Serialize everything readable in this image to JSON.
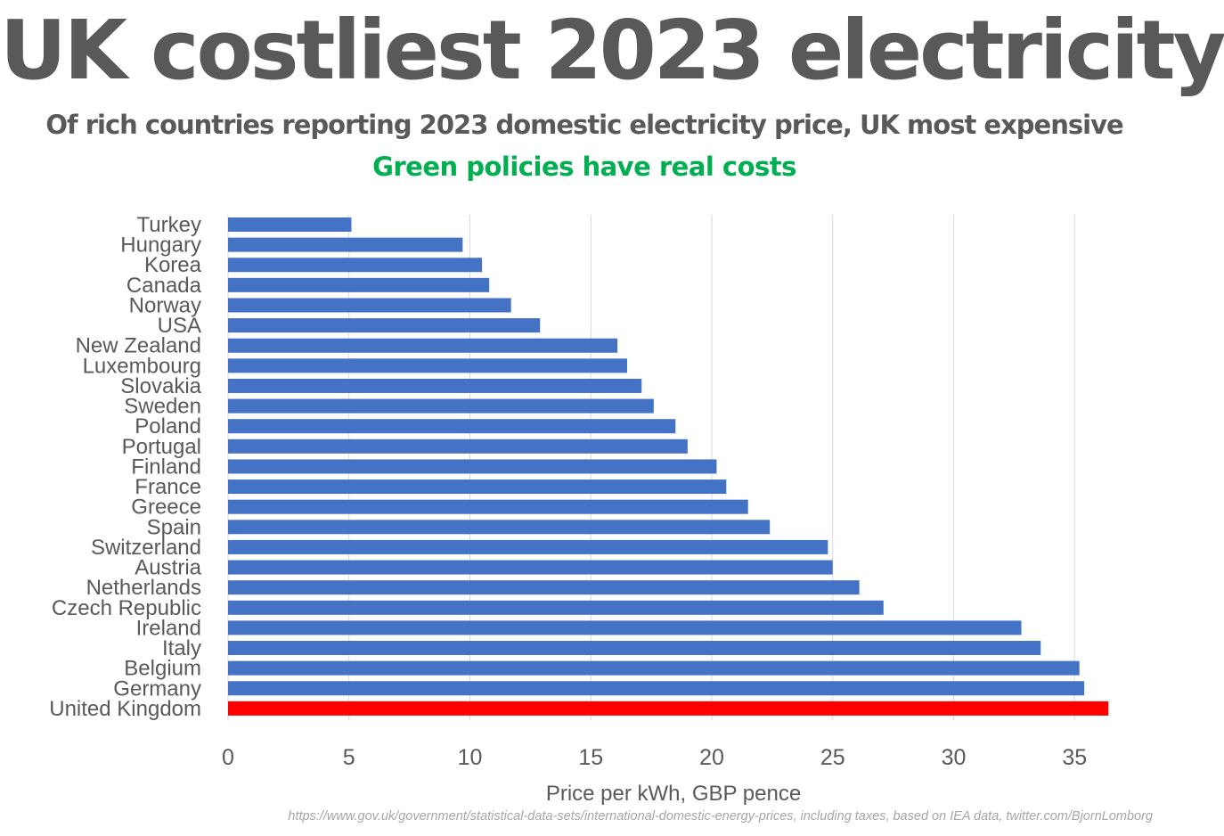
{
  "title": "UK costliest 2023 electricity",
  "subtitle": "Of rich countries reporting 2023 domestic electricity price, UK most expensive",
  "subtitle2": "Green policies have real costs",
  "source": "https://www.gov.uk/government/statistical-data-sets/international-domestic-energy-prices, including taxes, based on IEA data, twitter.com/BjornLomborg",
  "colors": {
    "title": "#595959",
    "subtitle2": "#00b050",
    "bar": "#4472c4",
    "highlight_bar": "#ff0000",
    "gridline": "#d9d9d9",
    "axis_text": "#595959",
    "source": "#a6a6a6"
  },
  "chart_data": {
    "type": "bar",
    "orientation": "horizontal",
    "categories": [
      "Turkey",
      "Hungary",
      "Korea",
      "Canada",
      "Norway",
      "USA",
      "New Zealand",
      "Luxembourg",
      "Slovakia",
      "Sweden",
      "Poland",
      "Portugal",
      "Finland",
      "France",
      "Greece",
      "Spain",
      "Switzerland",
      "Austria",
      "Netherlands",
      "Czech Republic",
      "Ireland",
      "Italy",
      "Belgium",
      "Germany",
      "United Kingdom"
    ],
    "values": [
      5.1,
      9.7,
      10.5,
      10.8,
      11.7,
      12.9,
      16.1,
      16.5,
      17.1,
      17.6,
      18.5,
      19.0,
      20.2,
      20.6,
      21.5,
      22.4,
      24.8,
      25.0,
      26.1,
      27.1,
      32.8,
      33.6,
      35.2,
      35.4,
      36.4
    ],
    "highlight": "United Kingdom",
    "xlabel": "Price per kWh, GBP pence",
    "ylabel": "",
    "xlim": [
      0,
      37
    ],
    "xticks": [
      0,
      5,
      10,
      15,
      20,
      25,
      30,
      35
    ],
    "grid": "vertical",
    "legend": "none"
  }
}
